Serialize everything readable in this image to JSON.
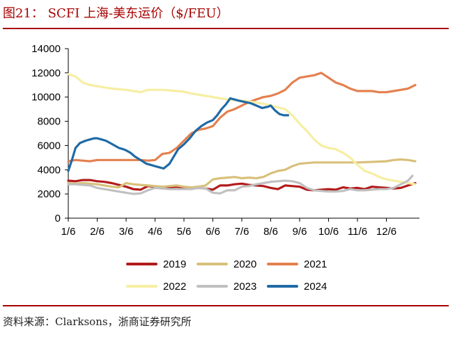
{
  "header": {
    "title": "图21：  SCFI 上海-美东运价（$/FEU）"
  },
  "footer": {
    "source": "资料来源：Clarksons，浙商证券研究所"
  },
  "chart_data": {
    "type": "line",
    "title": "SCFI 上海-美东运价（$/FEU）",
    "xlabel": "",
    "ylabel": "",
    "x_ticks": [
      "1/6",
      "2/6",
      "3/6",
      "4/6",
      "5/6",
      "6/6",
      "7/6",
      "8/6",
      "9/6",
      "10/6",
      "11/6",
      "12/6"
    ],
    "xlim": [
      1,
      13.2
    ],
    "ylim": [
      0,
      14000
    ],
    "y_ticks": [
      0,
      2000,
      4000,
      6000,
      8000,
      10000,
      12000,
      14000
    ],
    "legend_position": "bottom",
    "series": [
      {
        "name": "2019",
        "color": "#b31b1b",
        "x": [
          1.0,
          1.25,
          1.5,
          1.75,
          2.0,
          2.25,
          2.5,
          2.75,
          3.0,
          3.25,
          3.5,
          3.75,
          4.0,
          4.25,
          4.5,
          4.75,
          5.0,
          5.25,
          5.5,
          5.75,
          6.0,
          6.25,
          6.5,
          6.75,
          7.0,
          7.25,
          7.5,
          7.75,
          8.0,
          8.25,
          8.5,
          8.75,
          9.0,
          9.25,
          9.5,
          9.75,
          10.0,
          10.25,
          10.5,
          10.75,
          11.0,
          11.25,
          11.5,
          11.75,
          12.0,
          12.25,
          12.5,
          12.75,
          13.0
        ],
        "y": [
          3100,
          3050,
          3150,
          3150,
          3050,
          3000,
          2900,
          2750,
          2600,
          2400,
          2350,
          2650,
          2600,
          2600,
          2550,
          2600,
          2500,
          2450,
          2500,
          2450,
          2350,
          2700,
          2700,
          2800,
          2850,
          2750,
          2700,
          2650,
          2500,
          2400,
          2700,
          2650,
          2600,
          2350,
          2300,
          2350,
          2400,
          2350,
          2550,
          2450,
          2500,
          2400,
          2600,
          2550,
          2500,
          2450,
          2500,
          2700,
          2900
        ]
      },
      {
        "name": "2020",
        "color": "#d8c07a",
        "x": [
          1.0,
          1.25,
          1.5,
          1.75,
          2.0,
          2.25,
          2.5,
          2.75,
          3.0,
          3.25,
          3.5,
          3.75,
          4.0,
          4.25,
          4.5,
          4.75,
          5.0,
          5.25,
          5.5,
          5.75,
          6.0,
          6.25,
          6.5,
          6.75,
          7.0,
          7.25,
          7.5,
          7.75,
          8.0,
          8.25,
          8.5,
          8.75,
          9.0,
          9.25,
          9.5,
          10.0,
          10.5,
          11.0,
          11.5,
          12.0,
          12.25,
          12.5,
          12.75,
          13.0
        ],
        "y": [
          2900,
          2850,
          2900,
          2850,
          2800,
          2700,
          2600,
          2550,
          2900,
          2800,
          2750,
          2700,
          2650,
          2600,
          2650,
          2700,
          2600,
          2550,
          2600,
          2700,
          3200,
          3300,
          3350,
          3400,
          3300,
          3350,
          3300,
          3400,
          3700,
          3900,
          4000,
          4300,
          4500,
          4550,
          4600,
          4600,
          4600,
          4600,
          4650,
          4700,
          4800,
          4850,
          4800,
          4700
        ]
      },
      {
        "name": "2021",
        "color": "#e4804f",
        "x": [
          1.0,
          1.25,
          1.5,
          1.75,
          2.0,
          2.25,
          2.5,
          2.75,
          3.0,
          3.25,
          3.5,
          3.75,
          4.0,
          4.25,
          4.5,
          4.75,
          5.0,
          5.25,
          5.5,
          5.75,
          6.0,
          6.25,
          6.5,
          6.75,
          7.0,
          7.25,
          7.5,
          7.75,
          8.0,
          8.25,
          8.5,
          8.75,
          9.0,
          9.25,
          9.5,
          9.75,
          10.0,
          10.25,
          10.5,
          10.75,
          11.0,
          11.25,
          11.5,
          11.75,
          12.0,
          12.25,
          12.5,
          12.75,
          13.0
        ],
        "y": [
          4700,
          4800,
          4750,
          4700,
          4800,
          4800,
          4800,
          4800,
          4800,
          4800,
          4800,
          4750,
          4800,
          5300,
          5400,
          5800,
          6400,
          7000,
          7300,
          7400,
          7600,
          8300,
          8800,
          9000,
          9300,
          9600,
          9800,
          10000,
          10100,
          10300,
          10600,
          11200,
          11600,
          11700,
          11800,
          12000,
          11600,
          11200,
          11000,
          10700,
          10500,
          10500,
          10500,
          10400,
          10400,
          10500,
          10600,
          10700,
          11000
        ]
      },
      {
        "name": "2022",
        "color": "#f6eea2",
        "x": [
          1.0,
          1.25,
          1.5,
          1.75,
          2.0,
          2.25,
          2.5,
          2.75,
          3.0,
          3.25,
          3.5,
          3.75,
          4.0,
          4.25,
          4.5,
          4.75,
          5.0,
          5.25,
          5.5,
          5.75,
          6.0,
          6.25,
          6.5,
          6.75,
          7.0,
          7.25,
          7.5,
          7.75,
          8.0,
          8.25,
          8.5,
          8.75,
          9.0,
          9.25,
          9.5,
          9.75,
          10.0,
          10.25,
          10.5,
          10.75,
          11.0,
          11.25,
          11.5,
          11.75,
          12.0,
          12.25,
          12.5,
          12.75,
          13.0
        ],
        "y": [
          11900,
          11700,
          11200,
          11000,
          10900,
          10800,
          10700,
          10650,
          10600,
          10500,
          10400,
          10600,
          10600,
          10600,
          10550,
          10500,
          10450,
          10300,
          10200,
          10100,
          10000,
          9900,
          9800,
          9750,
          9700,
          9650,
          9550,
          9450,
          9300,
          9150,
          9000,
          8500,
          7800,
          7200,
          6500,
          6000,
          5800,
          5700,
          5400,
          5000,
          4400,
          3900,
          3700,
          3400,
          3200,
          3100,
          3000,
          2900,
          2800
        ]
      },
      {
        "name": "2023",
        "color": "#c0c0c0",
        "x": [
          1.0,
          1.25,
          1.5,
          1.75,
          2.0,
          2.25,
          2.5,
          2.75,
          3.0,
          3.25,
          3.5,
          3.75,
          4.0,
          4.25,
          4.5,
          4.75,
          5.0,
          5.25,
          5.5,
          5.75,
          6.0,
          6.25,
          6.5,
          6.75,
          7.0,
          7.25,
          7.5,
          7.75,
          8.0,
          8.25,
          8.5,
          8.75,
          9.0,
          9.25,
          9.5,
          9.75,
          10.0,
          10.25,
          10.5,
          10.75,
          11.0,
          11.25,
          11.5,
          11.75,
          12.0,
          12.25,
          12.5,
          12.75,
          12.9
        ],
        "y": [
          2800,
          2800,
          2750,
          2700,
          2500,
          2400,
          2300,
          2200,
          2100,
          2000,
          2050,
          2300,
          2500,
          2450,
          2400,
          2400,
          2400,
          2400,
          2500,
          2450,
          2100,
          2050,
          2300,
          2300,
          2600,
          2650,
          2800,
          2900,
          3000,
          3050,
          3100,
          3050,
          2900,
          2500,
          2300,
          2250,
          2200,
          2200,
          2250,
          2400,
          2300,
          2300,
          2350,
          2400,
          2400,
          2500,
          2800,
          3100,
          3500
        ]
      },
      {
        "name": "2024",
        "color": "#1f6aa5",
        "x": [
          1.0,
          1.125,
          1.25,
          1.4,
          1.6,
          1.75,
          1.9,
          2.0,
          2.15,
          2.3,
          2.45,
          2.6,
          2.75,
          2.9,
          3.0,
          3.15,
          3.3,
          3.5,
          3.7,
          3.85,
          4.0,
          4.15,
          4.3,
          4.5,
          4.65,
          4.8,
          5.0,
          5.2,
          5.4,
          5.6,
          5.8,
          6.0,
          6.15,
          6.3,
          6.45,
          6.6,
          6.75,
          6.9,
          7.1,
          7.3,
          7.5,
          7.7,
          7.9,
          8.0,
          8.15,
          8.3,
          8.45,
          8.6
        ],
        "y": [
          3900,
          4800,
          5800,
          6200,
          6400,
          6500,
          6600,
          6600,
          6500,
          6400,
          6200,
          6000,
          5800,
          5700,
          5600,
          5400,
          5100,
          4800,
          4500,
          4400,
          4300,
          4200,
          4100,
          4500,
          5100,
          5700,
          6100,
          6600,
          7200,
          7600,
          7900,
          8100,
          8500,
          9000,
          9400,
          9900,
          9800,
          9700,
          9600,
          9500,
          9300,
          9100,
          9200,
          9300,
          8900,
          8600,
          8500,
          8500
        ]
      }
    ]
  }
}
